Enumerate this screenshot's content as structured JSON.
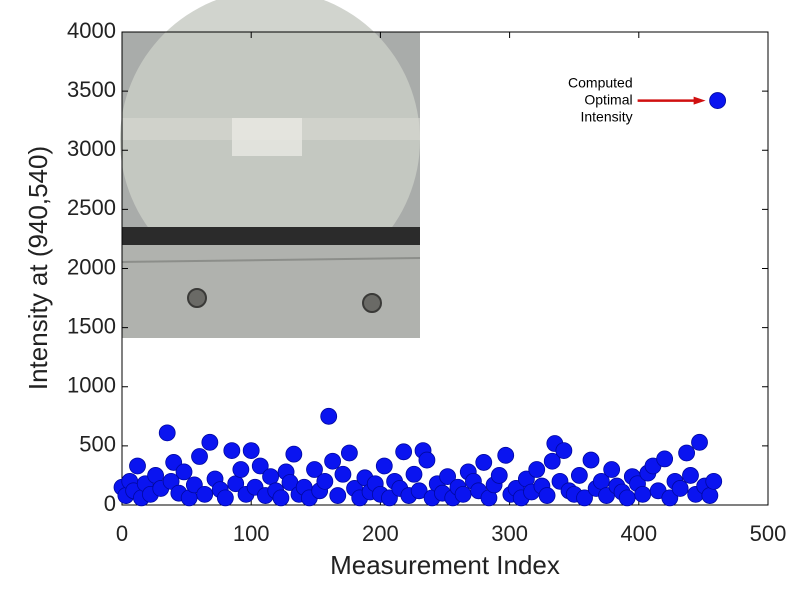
{
  "chart_data": {
    "type": "scatter",
    "xlabel": "Measurement Index",
    "ylabel": "Intensity at (940,540)",
    "annotation": [
      "Computed",
      "Optimal",
      "Intensity"
    ],
    "color": "#0a14f0",
    "annotation_color": "#d01010",
    "xlim": [
      0,
      500
    ],
    "xticks": [
      0,
      100,
      200,
      300,
      400,
      500
    ],
    "ylim": [
      0,
      4000
    ],
    "yticks": [
      0,
      500,
      1000,
      1500,
      2000,
      2500,
      3000,
      3500,
      4000
    ],
    "grid": false,
    "x": [
      0,
      3,
      6,
      9,
      12,
      15,
      18,
      22,
      26,
      30,
      35,
      38,
      40,
      44,
      48,
      52,
      56,
      60,
      64,
      68,
      72,
      76,
      80,
      85,
      88,
      92,
      96,
      100,
      103,
      107,
      111,
      115,
      119,
      123,
      127,
      130,
      133,
      137,
      141,
      145,
      149,
      153,
      157,
      160,
      163,
      167,
      171,
      176,
      180,
      184,
      188,
      192,
      196,
      200,
      203,
      207,
      211,
      215,
      218,
      222,
      226,
      230,
      233,
      236,
      240,
      244,
      248,
      252,
      256,
      260,
      264,
      268,
      272,
      276,
      280,
      284,
      288,
      292,
      297,
      301,
      305,
      309,
      313,
      317,
      321,
      325,
      329,
      333,
      335,
      339,
      342,
      346,
      350,
      354,
      358,
      363,
      367,
      371,
      375,
      379,
      383,
      387,
      391,
      395,
      399,
      403,
      407,
      411,
      415,
      420,
      424,
      428,
      432,
      437,
      440,
      444,
      447,
      451,
      455,
      458,
      461
    ],
    "values": [
      150,
      80,
      200,
      120,
      330,
      60,
      180,
      90,
      250,
      140,
      610,
      200,
      360,
      100,
      280,
      60,
      170,
      410,
      90,
      530,
      220,
      130,
      60,
      460,
      180,
      300,
      90,
      460,
      150,
      330,
      80,
      240,
      120,
      60,
      280,
      190,
      430,
      90,
      150,
      60,
      300,
      120,
      200,
      750,
      370,
      80,
      260,
      440,
      140,
      60,
      230,
      110,
      180,
      90,
      330,
      60,
      200,
      140,
      450,
      80,
      260,
      120,
      460,
      380,
      60,
      180,
      100,
      240,
      60,
      150,
      90,
      280,
      200,
      120,
      360,
      60,
      170,
      250,
      420,
      90,
      140,
      60,
      220,
      110,
      300,
      160,
      80,
      370,
      520,
      200,
      460,
      120,
      90,
      250,
      60,
      380,
      140,
      200,
      80,
      300,
      160,
      110,
      60,
      240,
      180,
      90,
      270,
      330,
      120,
      390,
      60,
      200,
      140,
      440,
      250,
      90,
      530,
      160,
      80,
      200,
      3420
    ]
  }
}
